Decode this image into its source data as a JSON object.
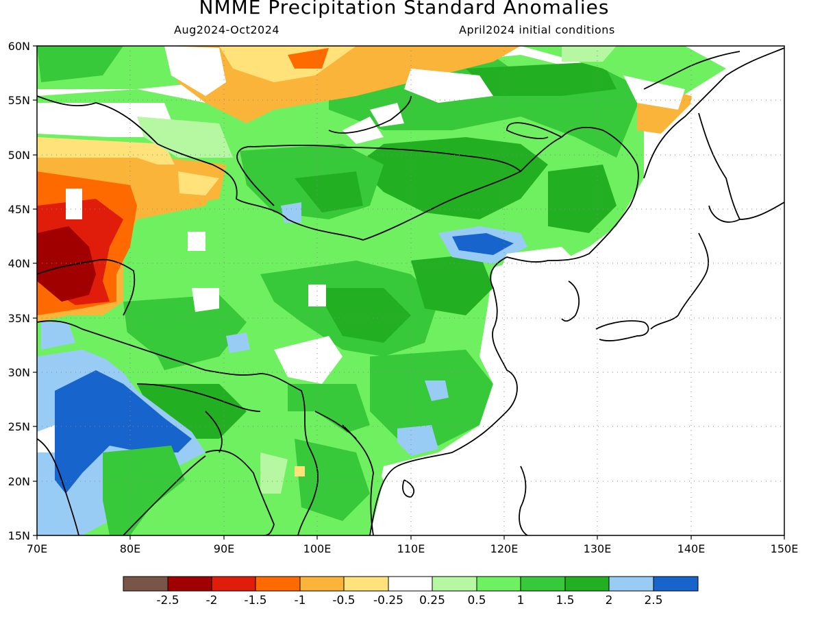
{
  "title": "NMME Precipitation Standard Anomalies",
  "subtitle_left": "Aug2024-Oct2024",
  "subtitle_right": "April2024 initial conditions",
  "map": {
    "lon_range": [
      70,
      150
    ],
    "lat_range": [
      15,
      60
    ],
    "lon_ticks": [
      "70E",
      "80E",
      "90E",
      "100E",
      "110E",
      "120E",
      "130E",
      "140E",
      "150E"
    ],
    "lat_ticks": [
      "60N",
      "55N",
      "50N",
      "45N",
      "40N",
      "35N",
      "30N",
      "25N",
      "20N",
      "15N"
    ],
    "grid": "dotted"
  },
  "colorbar": {
    "colors": [
      "#795548",
      "#a00000",
      "#e01c0a",
      "#ff6a00",
      "#fbb43a",
      "#ffe27a",
      "#ffffff",
      "#b6f7a2",
      "#6ef060",
      "#38c93a",
      "#22b022",
      "#99ccf5",
      "#1764cc"
    ],
    "labels": [
      "-2.5",
      "-2",
      "-1.5",
      "-1",
      "-0.5",
      "-0.25",
      "0.25",
      "0.5",
      "1",
      "1.5",
      "2",
      "2.5"
    ]
  }
}
